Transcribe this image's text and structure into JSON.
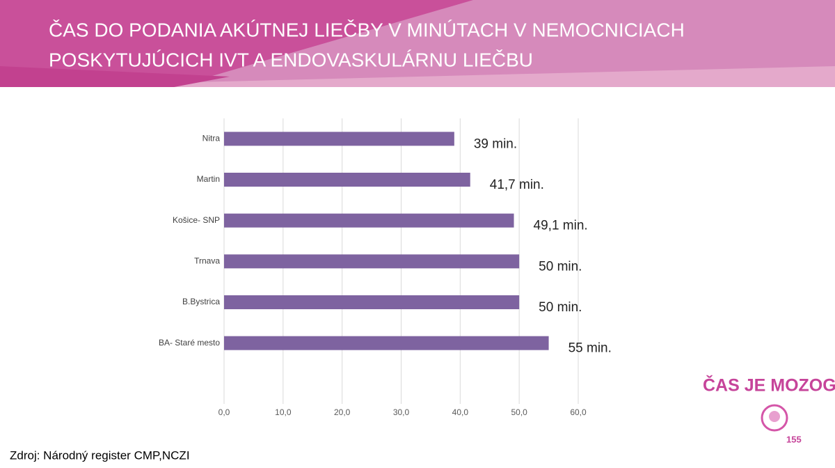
{
  "chart_data": {
    "type": "barh",
    "title": [
      "ČAS DO PODANIA AKÚTNEJ LIEČBY V MINÚTACH V NEMOCNICIACH",
      "POSKYTUJÚCICH IVT A ENDOVASKULÁRNU LIEČBU"
    ],
    "categories": [
      "Nitra",
      "Martin",
      "Košice- SNP",
      "Trnava",
      "B.Bystrica",
      "BA- Staré mesto"
    ],
    "values": [
      39,
      41.7,
      49.1,
      50,
      50,
      55
    ],
    "value_labels": [
      "39 min.",
      "41,7 min.",
      "49,1 min.",
      "50 min.",
      "50 min.",
      "55 min."
    ],
    "color": "#7e63a0",
    "xlim": [
      0,
      60
    ],
    "xticks": [
      {
        "value": 0,
        "label": "0,0"
      },
      {
        "value": 10,
        "label": "10,0"
      },
      {
        "value": 20,
        "label": "20,0"
      },
      {
        "value": 30,
        "label": "30,0"
      },
      {
        "value": 40,
        "label": "40,0"
      },
      {
        "value": 50,
        "label": "50,0"
      },
      {
        "value": 60,
        "label": "60,0"
      }
    ],
    "grid": true,
    "source": "Zdroj: Národný register CMP,NCZI",
    "logo_text": "ČAS JE MOZOG!",
    "logo_number": "155"
  }
}
